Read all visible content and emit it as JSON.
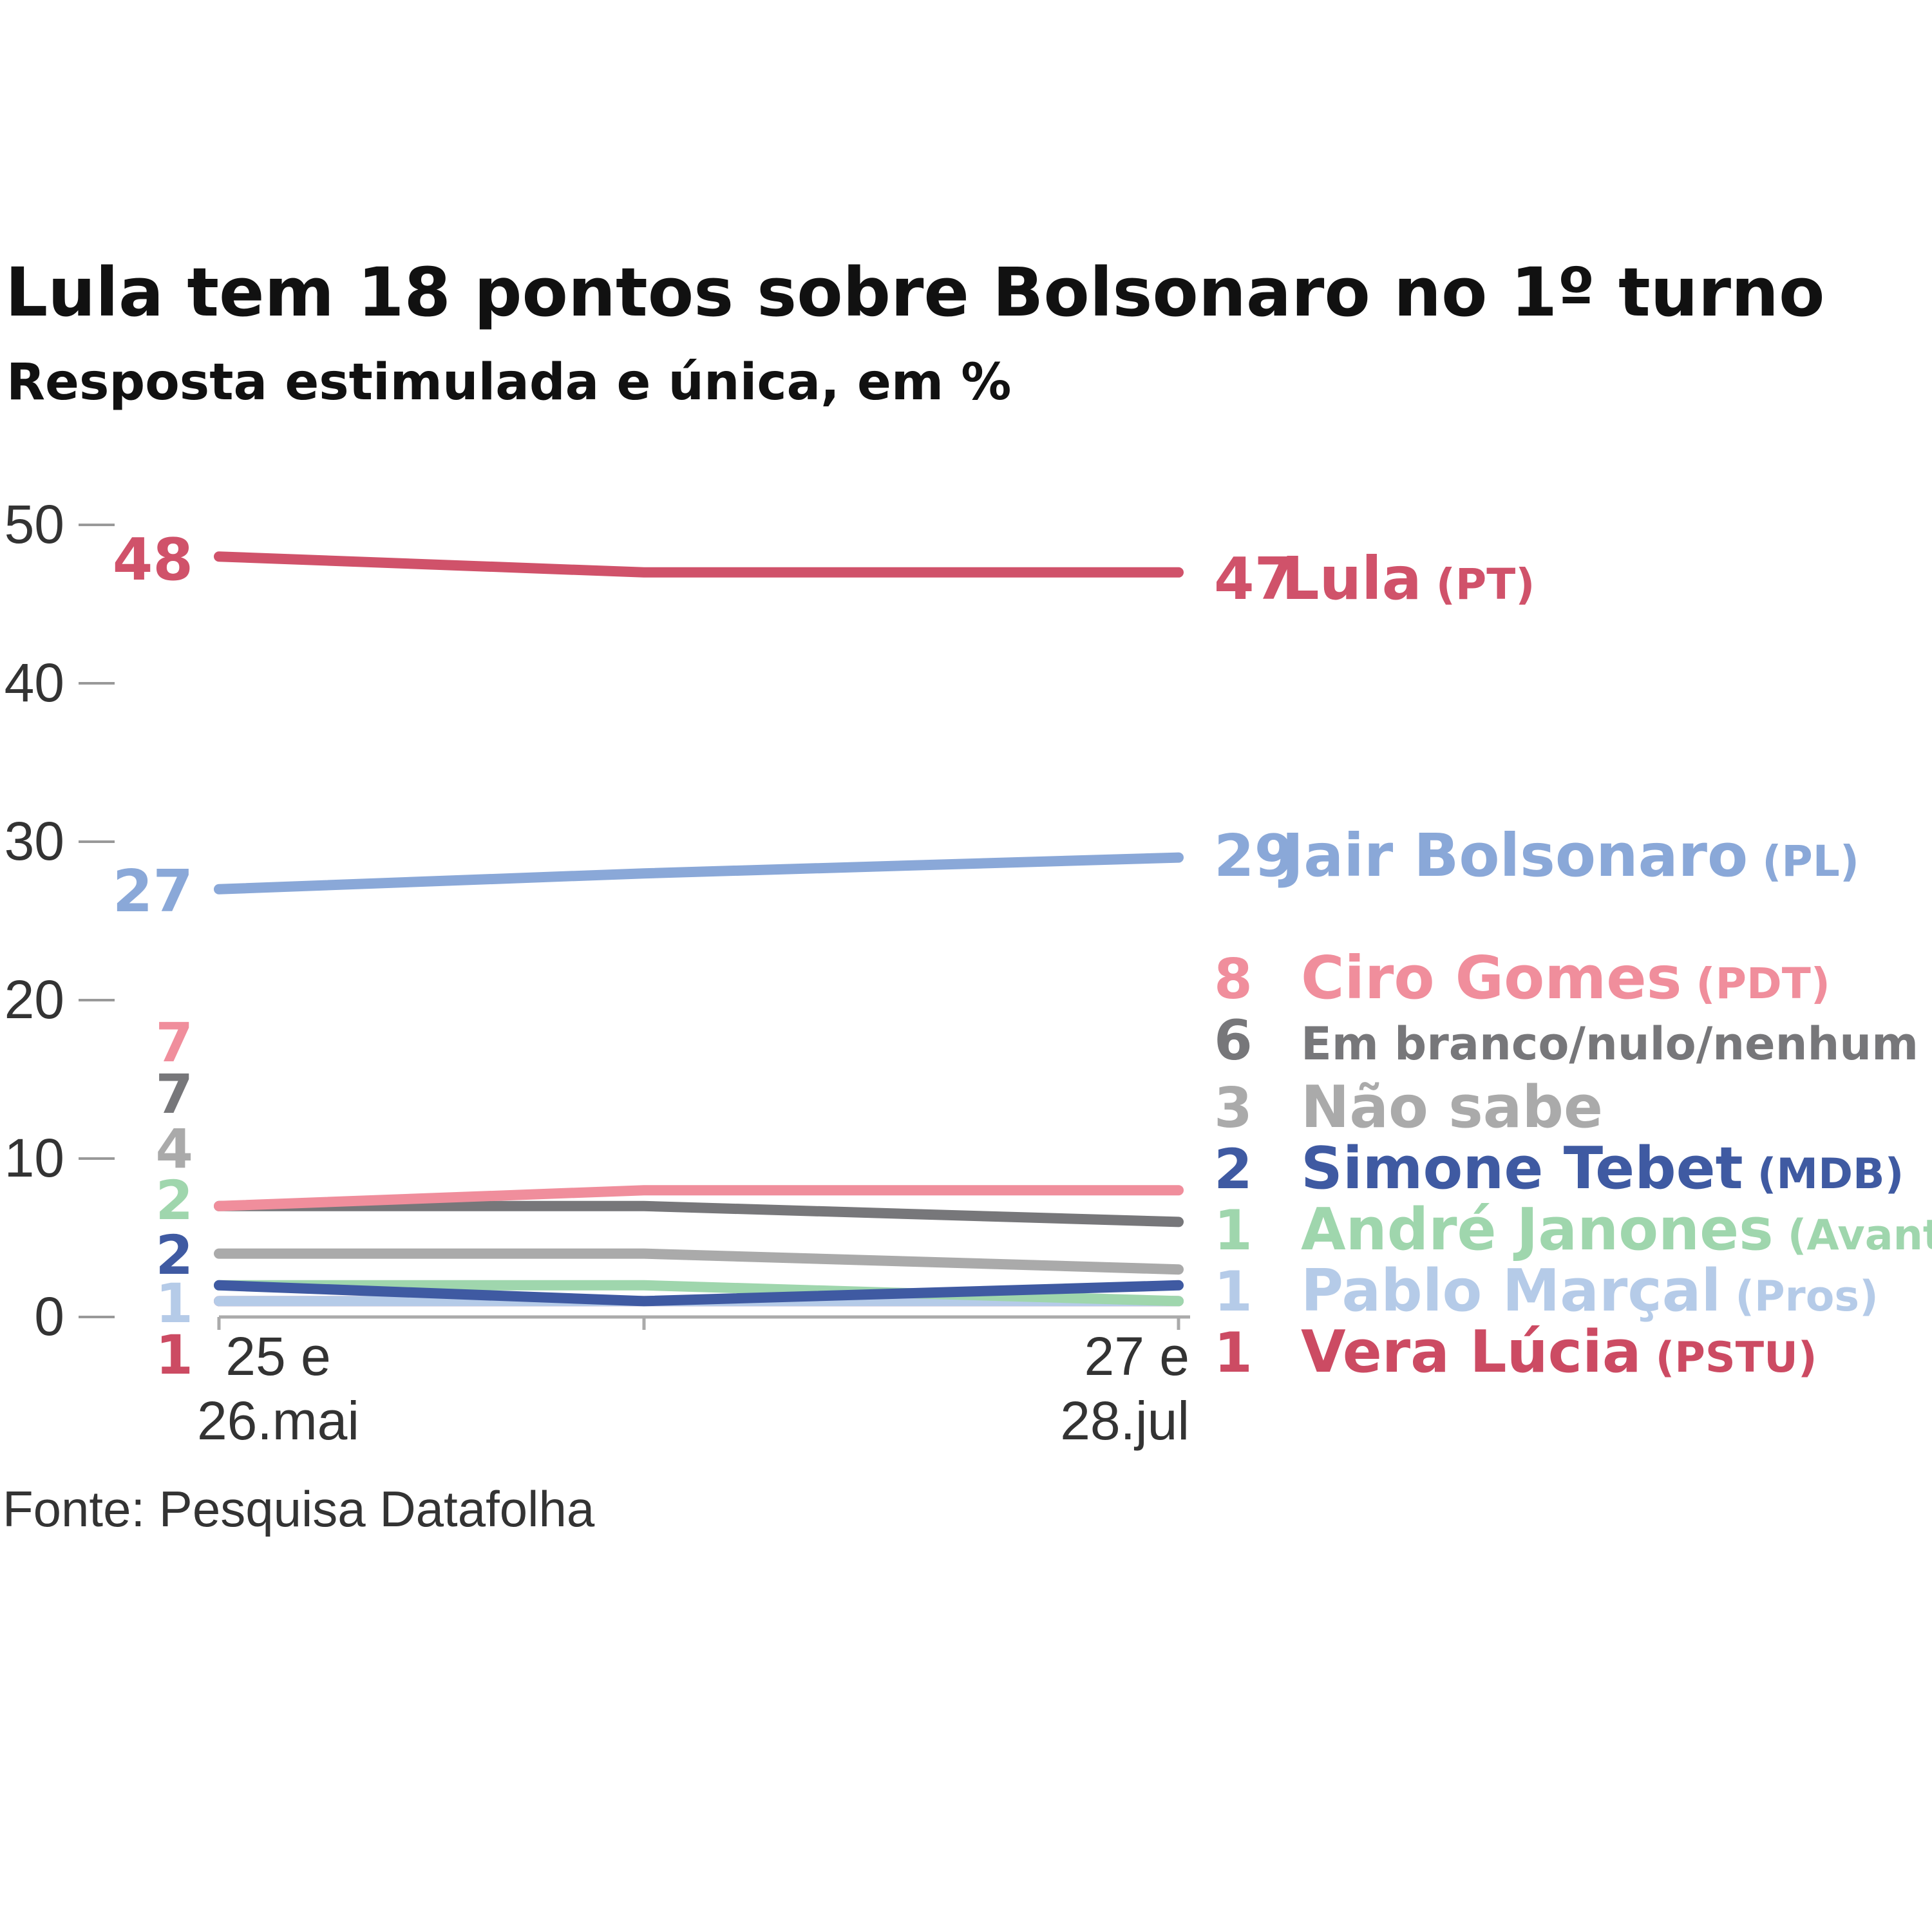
{
  "chart_data": {
    "type": "line",
    "title": "Lula tem 18 pontos sobre Bolsonaro no 1º turno",
    "subtitle": "Resposta estimulada e única, em %",
    "source": "Fonte: Pesquisa Datafolha",
    "x_categories": [
      "25 e 26.mai",
      "27 e 28.jul"
    ],
    "x_tick_lines": [
      [
        "25 e",
        "26.mai"
      ],
      [
        "27 e",
        "28.jul"
      ]
    ],
    "x_points": [
      "25 e 26.mai",
      "",
      "27 e 28.jul"
    ],
    "ylim": [
      0,
      50
    ],
    "yticks": [
      0,
      10,
      20,
      30,
      40,
      50
    ],
    "grid": false,
    "series": [
      {
        "name": "Lula",
        "party": "(PT)",
        "values": [
          48,
          47,
          47
        ],
        "start_label": "48",
        "end_label": "47",
        "color": "#d0526a"
      },
      {
        "name": "Jair Bolsonaro",
        "party": "(PL)",
        "values": [
          27,
          28,
          29
        ],
        "start_label": "27",
        "end_label": "29",
        "color": "#8aa8d8"
      },
      {
        "name": "Ciro Gomes",
        "party": "(PDT)",
        "values": [
          7,
          8,
          8
        ],
        "start_label": "7",
        "end_label": "8",
        "color": "#f08e9c"
      },
      {
        "name": "Em branco/nulo/nenhum",
        "party": "",
        "values": [
          7,
          7,
          6
        ],
        "start_label": "7",
        "end_label": "6",
        "color": "#77777a"
      },
      {
        "name": "Não sabe",
        "party": "",
        "values": [
          4,
          4,
          3
        ],
        "start_label": "4",
        "end_label": "3",
        "color": "#aaaaaa"
      },
      {
        "name": "Simone Tebet",
        "party": "(MDB)",
        "values": [
          2,
          1,
          2
        ],
        "start_label": "2",
        "end_label": "2",
        "color": "#3f5aa2"
      },
      {
        "name": "André Janones",
        "party": "(Avante)",
        "values": [
          2,
          2,
          1
        ],
        "start_label": "2",
        "end_label": "1",
        "color": "#9fd6ad"
      },
      {
        "name": "Pablo Marçal",
        "party": "(Pros)",
        "values": [
          1,
          1,
          1
        ],
        "start_label": "1",
        "end_label": "1",
        "color": "#b5cbe8"
      },
      {
        "name": "Vera Lúcia",
        "party": "(PSTU)",
        "values": [
          1,
          1,
          1
        ],
        "start_label": "1",
        "end_label": "1",
        "color": "#cc4b63"
      }
    ]
  }
}
